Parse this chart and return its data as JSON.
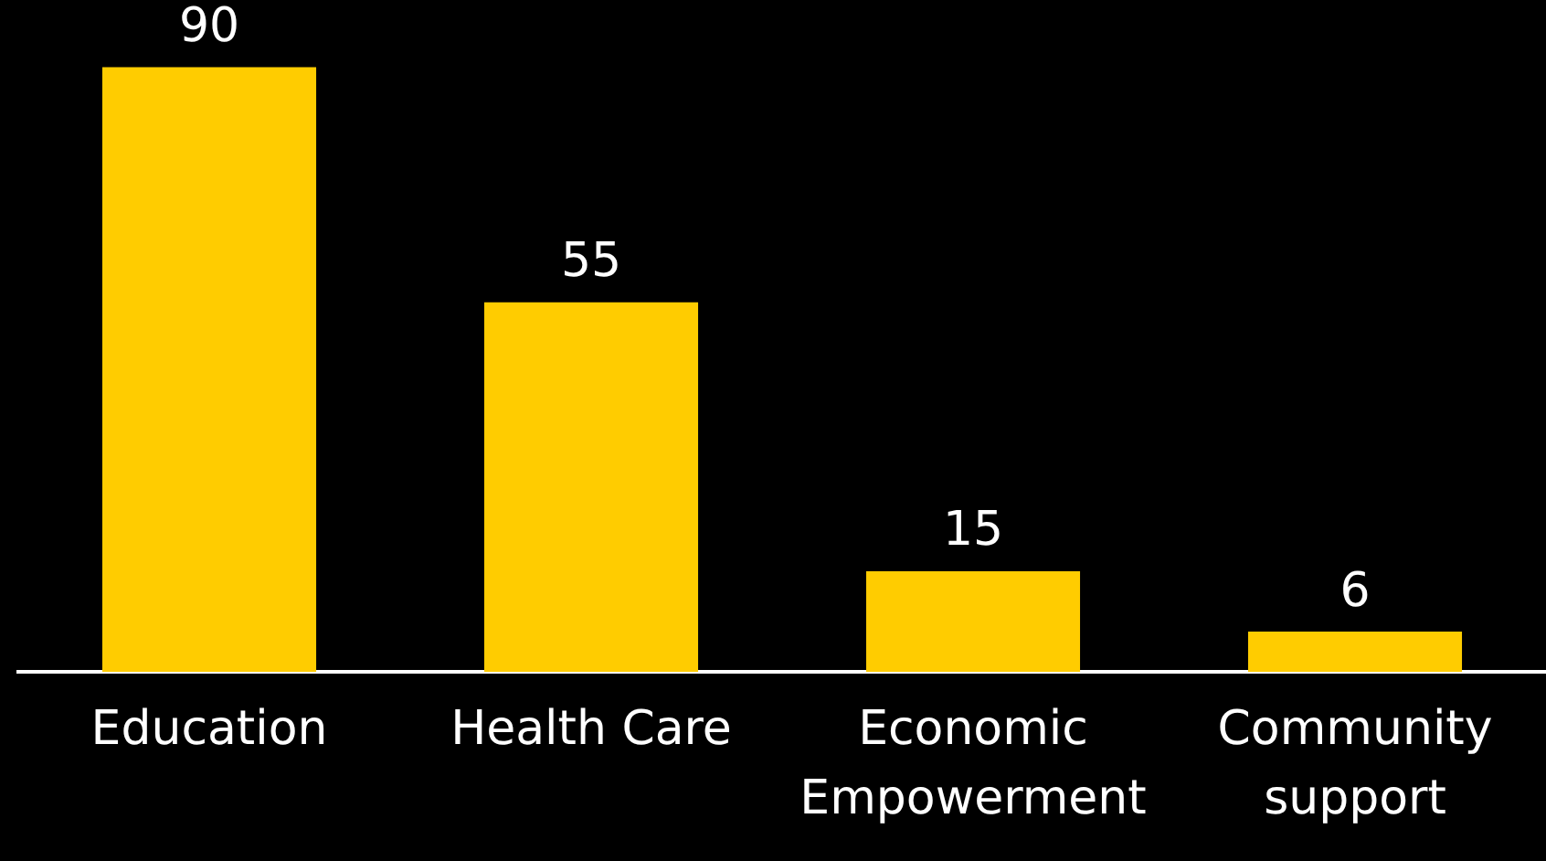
{
  "chart_data": {
    "type": "bar",
    "categories": [
      "Education",
      "Health Care",
      "Economic Empowerment",
      "Community support"
    ],
    "values": [
      90,
      55,
      15,
      6
    ],
    "color": "#ffcc00",
    "data_labels": true,
    "grid": false,
    "legend": false,
    "tick_labels": "x"
  }
}
